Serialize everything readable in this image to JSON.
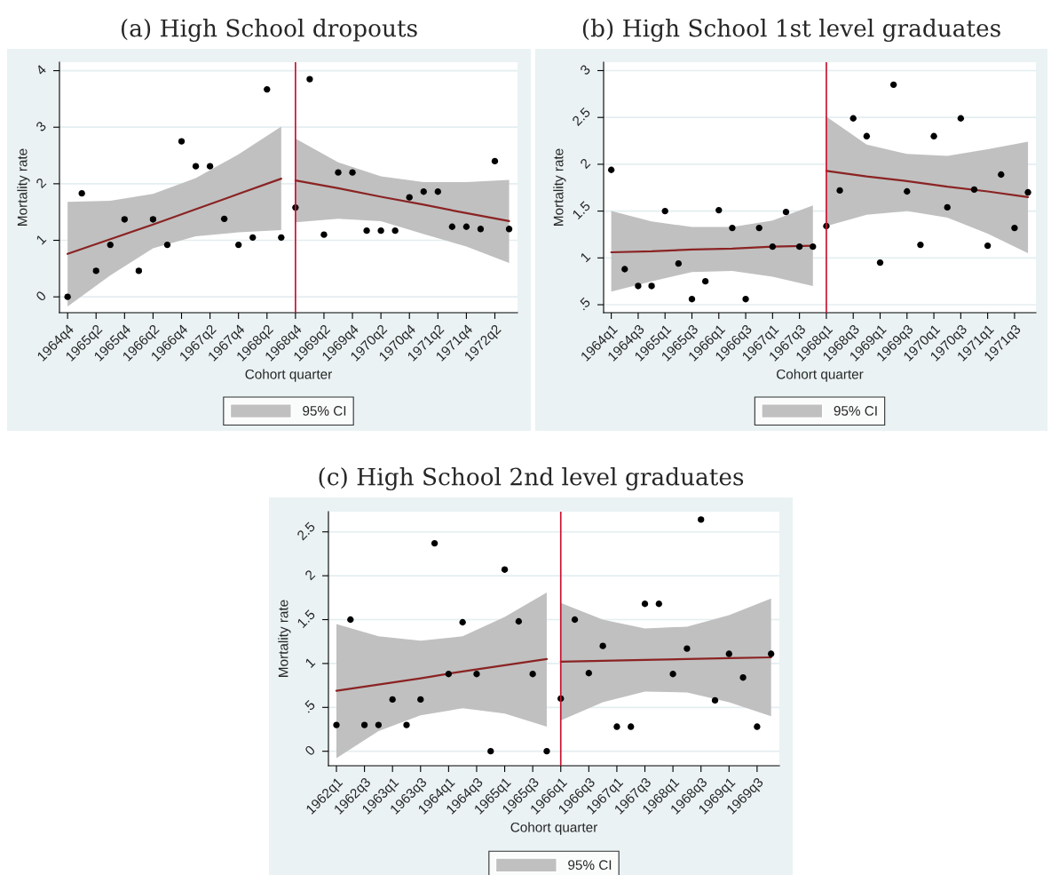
{
  "chart_data": [
    {
      "type": "scatter",
      "title": "(a) High School dropouts",
      "xlabel": "Cohort quarter",
      "ylabel": "Mortality rate",
      "grid": "y",
      "legend": "bottom",
      "ylim": [
        -0.28,
        4.15
      ],
      "yticks": [
        0,
        1,
        2,
        3,
        4
      ],
      "categories": [
        "1964q4",
        null,
        "1965q2",
        null,
        "1965q4",
        null,
        "1966q2",
        null,
        "1966q4",
        null,
        "1967q2",
        null,
        "1967q4",
        null,
        "1968q2",
        null,
        "1968q4",
        null,
        "1969q2",
        null,
        "1969q4",
        null,
        "1970q2",
        null,
        "1970q4",
        null,
        "1971q2",
        null,
        "1971q4",
        null,
        "1972q2",
        null
      ],
      "ref_lines": [
        {
          "axis": "x",
          "value": "1968q4",
          "color": "#c8102e"
        }
      ],
      "series": [
        {
          "color": "#000000",
          "marker": "circle",
          "values": [
            0,
            1.83,
            0.46,
            0.92,
            1.37,
            0.46,
            1.37,
            0.92,
            2.75,
            2.31,
            2.31,
            1.38,
            0.92,
            1.05,
            3.67,
            1.05,
            1.58,
            3.85,
            1.1,
            2.2,
            2.2,
            1.17,
            1.17,
            1.17,
            1.76,
            1.86,
            1.86,
            1.24,
            1.24,
            1.2,
            2.4,
            1.2
          ]
        },
        {
          "type": "line",
          "name": "95% CI",
          "color": "#8b2323",
          "values": [
            0.76,
            null,
            null,
            1.02,
            null,
            null,
            1.28,
            null,
            null,
            1.55,
            null,
            null,
            1.82,
            null,
            null,
            2.09,
            null,
            null,
            null,
            null,
            null,
            null,
            null,
            null,
            null,
            null,
            null,
            null,
            null,
            null,
            null,
            null
          ],
          "lower": [
            -0.17,
            null,
            null,
            0.38,
            null,
            null,
            0.86,
            null,
            null,
            1.07,
            null,
            null,
            1.14,
            null,
            null,
            1.18,
            null,
            null,
            null,
            null,
            null,
            null,
            null,
            null,
            null,
            null,
            null,
            null,
            null,
            null,
            null,
            null
          ],
          "upper": [
            1.68,
            null,
            null,
            1.7,
            null,
            null,
            1.82,
            null,
            null,
            2.1,
            null,
            null,
            2.52,
            null,
            null,
            3.01,
            null,
            null,
            null,
            null,
            null,
            null,
            null,
            null,
            null,
            null,
            null,
            null,
            null,
            null,
            null,
            null
          ]
        },
        {
          "type": "line",
          "color": "#8b2323",
          "values": [
            null,
            null,
            null,
            null,
            null,
            null,
            null,
            null,
            null,
            null,
            null,
            null,
            null,
            null,
            null,
            null,
            2.06,
            null,
            null,
            1.92,
            null,
            null,
            1.77,
            null,
            null,
            1.63,
            null,
            null,
            1.48,
            null,
            null,
            1.34
          ],
          "lower": [
            null,
            null,
            null,
            null,
            null,
            null,
            null,
            null,
            null,
            null,
            null,
            null,
            null,
            null,
            null,
            null,
            1.32,
            null,
            null,
            1.38,
            null,
            null,
            1.34,
            null,
            null,
            1.11,
            null,
            null,
            0.89,
            null,
            null,
            0.6
          ],
          "upper": [
            null,
            null,
            null,
            null,
            null,
            null,
            null,
            null,
            null,
            null,
            null,
            null,
            null,
            null,
            null,
            null,
            2.8,
            null,
            null,
            2.38,
            null,
            null,
            2.13,
            null,
            null,
            2.03,
            null,
            null,
            2.03,
            null,
            null,
            2.07
          ]
        }
      ]
    },
    {
      "type": "scatter",
      "title": "(b) High School 1st level graduates",
      "xlabel": "Cohort quarter",
      "ylabel": "Mortality rate",
      "grid": "y",
      "legend": "bottom",
      "ylim": [
        0.415,
        3.09
      ],
      "yticks": [
        {
          "value": 0.5,
          "label": ".5"
        },
        1,
        1.5,
        2,
        2.5,
        3
      ],
      "categories": [
        "1964q1",
        null,
        "1964q3",
        null,
        "1965q1",
        null,
        "1965q3",
        null,
        "1966q1",
        null,
        "1966q3",
        null,
        "1967q1",
        null,
        "1967q3",
        null,
        "1968q1",
        null,
        "1968q3",
        null,
        "1969q1",
        null,
        "1969q3",
        null,
        "1970q1",
        null,
        "1970q3",
        null,
        "1971q1",
        null,
        "1971q3",
        null
      ],
      "ref_lines": [
        {
          "axis": "x",
          "value": "1968q1",
          "color": "#c8102e"
        }
      ],
      "series": [
        {
          "color": "#000000",
          "marker": "circle",
          "values": [
            1.94,
            0.88,
            0.7,
            0.7,
            1.5,
            0.94,
            0.56,
            0.75,
            1.51,
            1.32,
            0.56,
            1.32,
            1.12,
            1.49,
            1.12,
            1.12,
            1.34,
            1.72,
            2.49,
            2.3,
            0.95,
            2.85,
            1.71,
            1.14,
            2.3,
            1.54,
            2.49,
            1.73,
            1.13,
            1.89,
            1.32,
            1.7
          ]
        },
        {
          "type": "line",
          "name": "95% CI",
          "color": "#8b2323",
          "values": [
            1.06,
            null,
            null,
            1.07,
            null,
            null,
            1.09,
            null,
            null,
            1.1,
            null,
            null,
            1.12,
            null,
            null,
            1.13,
            null,
            null,
            null,
            null,
            null,
            null,
            null,
            null,
            null,
            null,
            null,
            null,
            null,
            null,
            null,
            null
          ],
          "lower": [
            0.64,
            null,
            null,
            0.75,
            null,
            null,
            0.85,
            null,
            null,
            0.86,
            null,
            null,
            0.8,
            null,
            null,
            0.7,
            null,
            null,
            null,
            null,
            null,
            null,
            null,
            null,
            null,
            null,
            null,
            null,
            null,
            null,
            null,
            null
          ],
          "upper": [
            1.5,
            null,
            null,
            1.39,
            null,
            null,
            1.33,
            null,
            null,
            1.33,
            null,
            null,
            1.4,
            null,
            null,
            1.56,
            null,
            null,
            null,
            null,
            null,
            null,
            null,
            null,
            null,
            null,
            null,
            null,
            null,
            null,
            null,
            null
          ]
        },
        {
          "type": "line",
          "color": "#8b2323",
          "values": [
            null,
            null,
            null,
            null,
            null,
            null,
            null,
            null,
            null,
            null,
            null,
            null,
            null,
            null,
            null,
            null,
            1.93,
            null,
            null,
            1.87,
            null,
            null,
            1.82,
            null,
            null,
            1.76,
            null,
            null,
            1.71,
            null,
            null,
            1.65
          ],
          "lower": [
            null,
            null,
            null,
            null,
            null,
            null,
            null,
            null,
            null,
            null,
            null,
            null,
            null,
            null,
            null,
            null,
            1.34,
            null,
            null,
            1.46,
            null,
            null,
            1.5,
            null,
            null,
            1.43,
            null,
            null,
            1.26,
            null,
            null,
            1.05
          ],
          "upper": [
            null,
            null,
            null,
            null,
            null,
            null,
            null,
            null,
            null,
            null,
            null,
            null,
            null,
            null,
            null,
            null,
            2.51,
            null,
            null,
            2.21,
            null,
            null,
            2.11,
            null,
            null,
            2.09,
            null,
            null,
            2.16,
            null,
            null,
            2.24
          ]
        }
      ]
    },
    {
      "type": "scatter",
      "title": "(c) High School 2nd level graduates",
      "xlabel": "Cohort quarter",
      "ylabel": "Mortality rate",
      "grid": "y",
      "legend": "bottom",
      "ylim": [
        -0.165,
        2.73
      ],
      "yticks": [
        0,
        {
          "value": 0.5,
          "label": ".5"
        },
        1,
        1.5,
        2,
        2.5
      ],
      "categories": [
        "1962q1",
        null,
        "1962q3",
        null,
        "1963q1",
        null,
        "1963q3",
        null,
        "1964q1",
        null,
        "1964q3",
        null,
        "1965q1",
        null,
        "1965q3",
        null,
        "1966q1",
        null,
        "1966q3",
        null,
        "1967q1",
        null,
        "1967q3",
        null,
        "1968q1",
        null,
        "1968q3",
        null,
        "1969q1",
        null,
        "1969q3",
        null
      ],
      "ref_lines": [
        {
          "axis": "x",
          "value": "1966q1",
          "color": "#c8102e"
        }
      ],
      "series": [
        {
          "color": "#000000",
          "marker": "circle",
          "values": [
            0.3,
            1.5,
            0.3,
            0.3,
            0.59,
            0.3,
            0.59,
            2.37,
            0.88,
            1.47,
            0.88,
            0,
            2.07,
            1.48,
            0.88,
            0,
            0.6,
            1.5,
            0.89,
            1.2,
            0.28,
            0.28,
            1.68,
            1.68,
            0.88,
            1.17,
            2.64,
            0.58,
            1.11,
            0.84,
            0.28,
            1.11
          ]
        },
        {
          "type": "line",
          "name": "95% CI",
          "color": "#8b2323",
          "values": [
            0.69,
            null,
            null,
            0.76,
            null,
            null,
            0.83,
            null,
            null,
            0.91,
            null,
            null,
            0.98,
            null,
            null,
            1.05,
            null,
            null,
            null,
            null,
            null,
            null,
            null,
            null,
            null,
            null,
            null,
            null,
            null,
            null,
            null,
            null
          ],
          "lower": [
            -0.08,
            null,
            null,
            0.23,
            null,
            null,
            0.41,
            null,
            null,
            0.49,
            null,
            null,
            0.43,
            null,
            null,
            0.28,
            null,
            null,
            null,
            null,
            null,
            null,
            null,
            null,
            null,
            null,
            null,
            null,
            null,
            null,
            null,
            null
          ],
          "upper": [
            1.45,
            null,
            null,
            1.31,
            null,
            null,
            1.26,
            null,
            null,
            1.31,
            null,
            null,
            1.53,
            null,
            null,
            1.81,
            null,
            null,
            null,
            null,
            null,
            null,
            null,
            null,
            null,
            null,
            null,
            null,
            null,
            null,
            null,
            null
          ]
        },
        {
          "type": "line",
          "color": "#8b2323",
          "values": [
            null,
            null,
            null,
            null,
            null,
            null,
            null,
            null,
            null,
            null,
            null,
            null,
            null,
            null,
            null,
            null,
            1.02,
            null,
            null,
            1.03,
            null,
            null,
            1.04,
            null,
            null,
            1.05,
            null,
            null,
            1.06,
            null,
            null,
            1.07
          ],
          "lower": [
            null,
            null,
            null,
            null,
            null,
            null,
            null,
            null,
            null,
            null,
            null,
            null,
            null,
            null,
            null,
            null,
            0.35,
            null,
            null,
            0.56,
            null,
            null,
            0.68,
            null,
            null,
            0.67,
            null,
            null,
            0.56,
            null,
            null,
            0.4
          ],
          "upper": [
            null,
            null,
            null,
            null,
            null,
            null,
            null,
            null,
            null,
            null,
            null,
            null,
            null,
            null,
            null,
            null,
            1.69,
            null,
            null,
            1.5,
            null,
            null,
            1.4,
            null,
            null,
            1.42,
            null,
            null,
            1.55,
            null,
            null,
            1.74
          ]
        }
      ]
    }
  ]
}
